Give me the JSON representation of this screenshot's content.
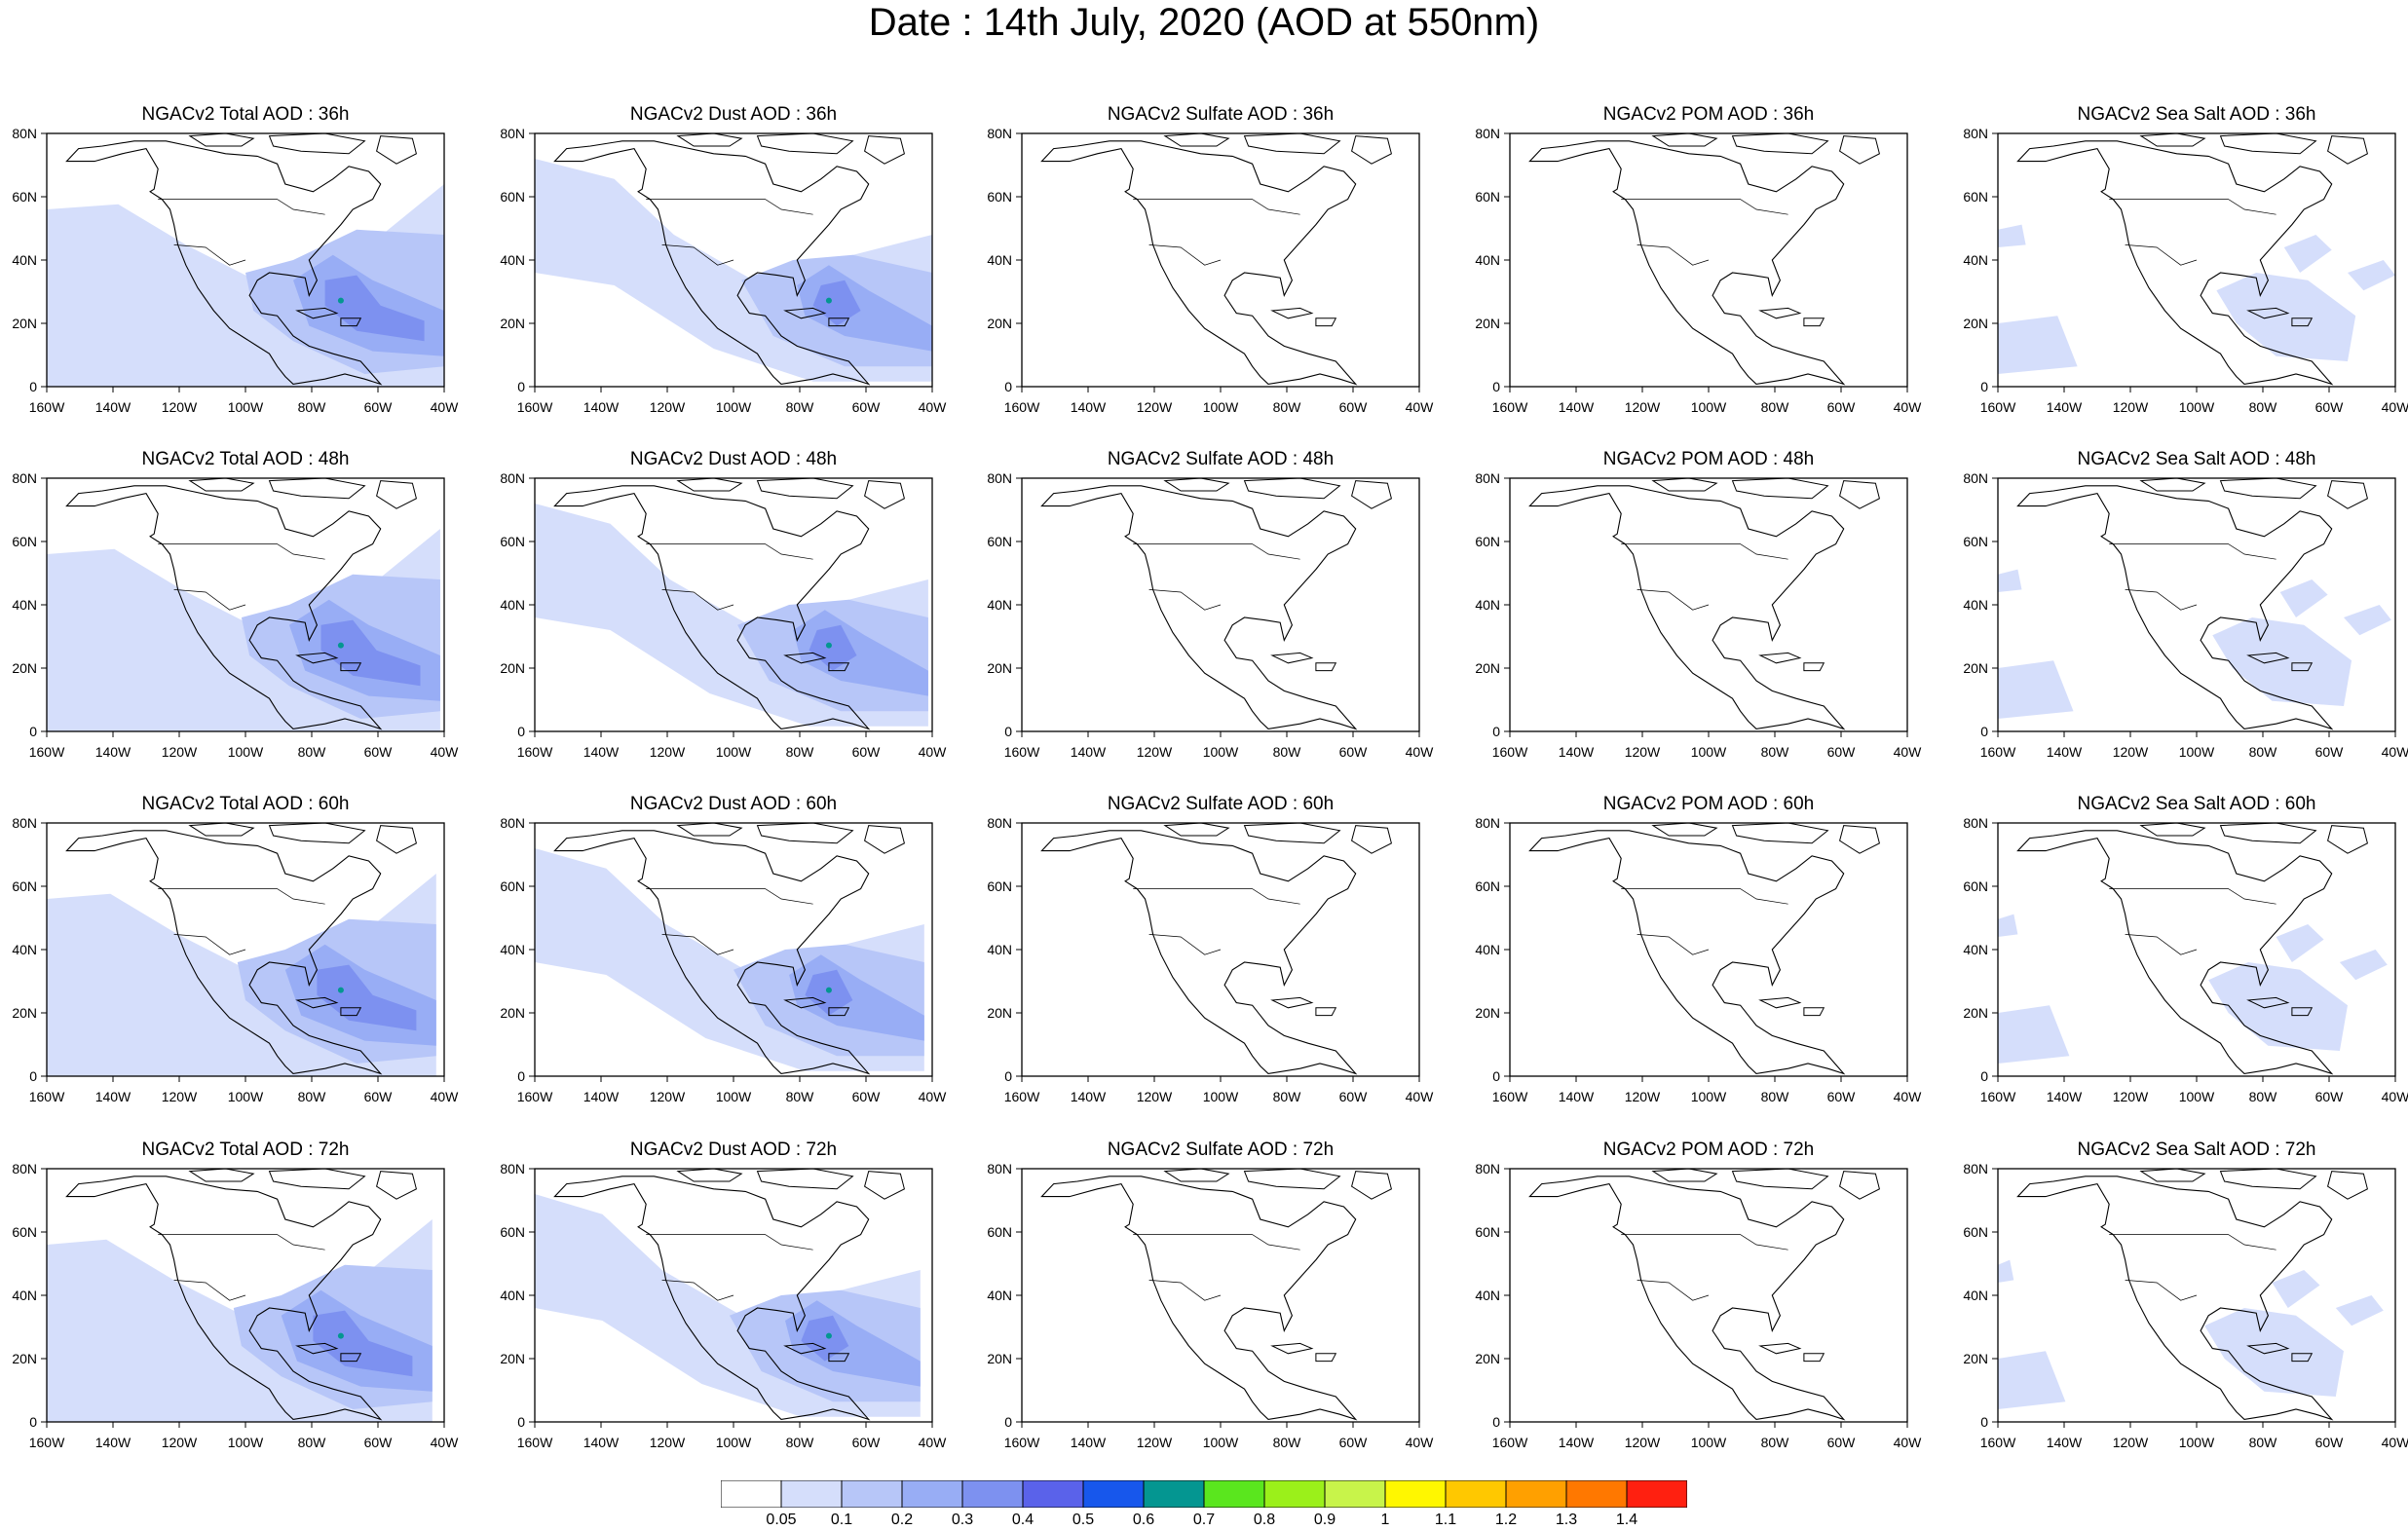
{
  "title": "Date : 14th July, 2020 (AOD at 550nm)",
  "lat_ticks": [
    "80N",
    "60N",
    "40N",
    "20N",
    "0"
  ],
  "lon_ticks": [
    "160W",
    "140W",
    "120W",
    "100W",
    "80W",
    "60W",
    "40W"
  ],
  "map_extent": {
    "lon": [
      -160,
      -40
    ],
    "lat": [
      0,
      80
    ]
  },
  "fields": [
    "Total",
    "Dust",
    "Sulfate",
    "POM",
    "Sea Salt"
  ],
  "lead_times": [
    "36h",
    "48h",
    "60h",
    "72h"
  ],
  "panels": [
    [
      "NGACv2 Total AOD : 36h",
      "NGACv2 Dust AOD : 36h",
      "NGACv2 Sulfate AOD : 36h",
      "NGACv2 POM AOD : 36h",
      "NGACv2 Sea Salt AOD : 36h"
    ],
    [
      "NGACv2 Total AOD : 48h",
      "NGACv2 Dust AOD : 48h",
      "NGACv2 Sulfate AOD : 48h",
      "NGACv2 POM AOD : 48h",
      "NGACv2 Sea Salt AOD : 48h"
    ],
    [
      "NGACv2 Total AOD : 60h",
      "NGACv2 Dust AOD : 60h",
      "NGACv2 Sulfate AOD : 60h",
      "NGACv2 POM AOD : 60h",
      "NGACv2 Sea Salt AOD : 60h"
    ],
    [
      "NGACv2 Total AOD : 72h",
      "NGACv2 Dust AOD : 72h",
      "NGACv2 Sulfate AOD : 72h",
      "NGACv2 POM AOD : 72h",
      "NGACv2 Sea Salt  AOD : 72h"
    ]
  ],
  "colorbar": {
    "labels": [
      "0.05",
      "0.1",
      "0.2",
      "0.3",
      "0.4",
      "0.5",
      "0.6",
      "0.7",
      "0.8",
      "0.9",
      "1",
      "1.1",
      "1.2",
      "1.3",
      "1.4"
    ],
    "colors": [
      "#ffffff",
      "#d5defb",
      "#b7c6f8",
      "#98adf5",
      "#7d91f0",
      "#5a62ea",
      "#1757ec",
      "#049691",
      "#5ae61e",
      "#9bf01a",
      "#c8f44a",
      "#fff700",
      "#ffc800",
      "#ffa000",
      "#ff7800",
      "#ff2010"
    ]
  }
}
